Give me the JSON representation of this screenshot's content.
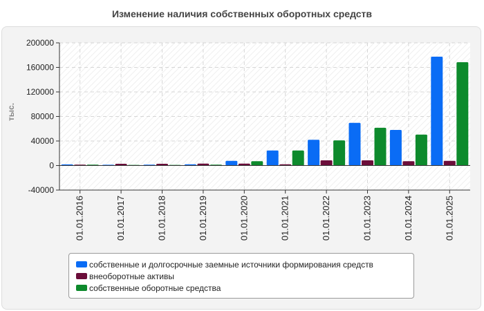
{
  "chart_data": {
    "type": "bar",
    "title": "Изменение наличия собственных оборотных средств",
    "ylabel": "тыс.",
    "xlabel": "",
    "ylim": [
      -40000,
      200000
    ],
    "yticks": [
      -40000,
      0,
      40000,
      80000,
      120000,
      160000,
      200000
    ],
    "categories": [
      "01.01.2016",
      "01.01.2017",
      "01.01.2018",
      "01.01.2019",
      "01.01.2020",
      "01.01.2021",
      "01.01.2022",
      "01.01.2023",
      "01.01.2024",
      "01.01.2025"
    ],
    "series": [
      {
        "name": "собственные и долгосрочные заемные источники формирования средств",
        "color": "#0a6cf5",
        "values": [
          1800,
          1200,
          1500,
          2000,
          7500,
          24500,
          42000,
          69500,
          58000,
          177500
        ]
      },
      {
        "name": "внеоборотные активы",
        "color": "#6b0d3a",
        "values": [
          1500,
          2800,
          2800,
          3000,
          3000,
          2000,
          8500,
          8500,
          7000,
          7500
        ]
      },
      {
        "name": "собственные оборотные средства",
        "color": "#0d8a2c",
        "values": [
          1500,
          1000,
          1000,
          1500,
          7000,
          24500,
          41000,
          61500,
          50500,
          168500
        ]
      }
    ],
    "legend_position": "bottom"
  }
}
